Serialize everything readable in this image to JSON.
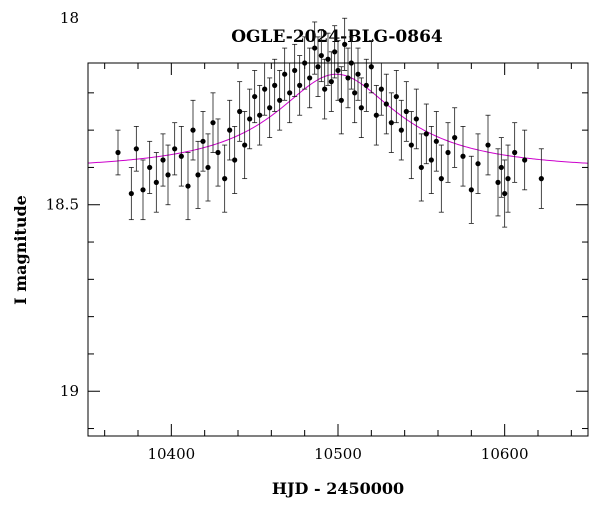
{
  "chart_data": {
    "type": "scatter",
    "title": "OGLE-2024-BLG-0864",
    "xlabel": "HJD - 2450000",
    "ylabel": "I magnitude",
    "xlim": [
      10350,
      10650
    ],
    "ylim": [
      19.12,
      18.12
    ],
    "y_inverted": true,
    "grid": false,
    "legend": "none",
    "x_major_ticks": [
      10400,
      10500,
      10600
    ],
    "x_tick_labels": [
      "10400",
      "10500",
      "10600"
    ],
    "y_major_ticks": [
      18,
      18.5,
      19
    ],
    "y_tick_labels": [
      "18",
      "18.5",
      "19"
    ],
    "colors": {
      "points": "#000000",
      "model": "#cc00cc",
      "frame": "#000000"
    },
    "model": {
      "name": "",
      "t0": 10499,
      "baseline_mag": 18.41,
      "peak_mag": 18.15,
      "width_days": 45
    },
    "series": [
      {
        "name": "",
        "x": [
          10368,
          10376,
          10379,
          10383,
          10387,
          10391,
          10395,
          10398,
          10402,
          10406,
          10410,
          10413,
          10416,
          10419,
          10422,
          10425,
          10428,
          10432,
          10435,
          10438,
          10441,
          10444,
          10447,
          10450,
          10453,
          10456,
          10459,
          10462,
          10465,
          10468,
          10471,
          10474,
          10477,
          10480,
          10483,
          10486,
          10488,
          10490,
          10492,
          10494,
          10496,
          10498,
          10500,
          10502,
          10504,
          10506,
          10508,
          10510,
          10512,
          10514,
          10517,
          10520,
          10523,
          10526,
          10529,
          10532,
          10535,
          10538,
          10541,
          10544,
          10547,
          10550,
          10553,
          10556,
          10559,
          10562,
          10566,
          10570,
          10575,
          10580,
          10584,
          10590,
          10596,
          10598,
          10600,
          10602,
          10606,
          10612,
          10622
        ],
        "y": [
          18.36,
          18.47,
          18.35,
          18.46,
          18.4,
          18.44,
          18.38,
          18.42,
          18.35,
          18.37,
          18.45,
          18.3,
          18.42,
          18.33,
          18.4,
          18.28,
          18.36,
          18.43,
          18.3,
          18.38,
          18.25,
          18.34,
          18.27,
          18.21,
          18.26,
          18.19,
          18.24,
          18.18,
          18.22,
          18.15,
          18.2,
          18.14,
          18.18,
          18.12,
          18.16,
          18.08,
          18.13,
          18.1,
          18.19,
          18.11,
          18.17,
          18.09,
          18.14,
          18.22,
          18.07,
          18.16,
          18.12,
          18.2,
          18.15,
          18.24,
          18.18,
          18.13,
          18.26,
          18.19,
          18.23,
          18.28,
          18.21,
          18.3,
          18.25,
          18.34,
          18.27,
          18.4,
          18.31,
          18.38,
          18.33,
          18.43,
          18.36,
          18.32,
          18.37,
          18.46,
          18.39,
          18.34,
          18.44,
          18.4,
          18.47,
          18.43,
          18.36,
          18.38,
          18.43
        ],
        "err": [
          0.06,
          0.07,
          0.06,
          0.08,
          0.07,
          0.08,
          0.07,
          0.08,
          0.07,
          0.08,
          0.09,
          0.08,
          0.09,
          0.08,
          0.09,
          0.08,
          0.09,
          0.09,
          0.08,
          0.09,
          0.08,
          0.09,
          0.08,
          0.07,
          0.08,
          0.07,
          0.08,
          0.07,
          0.08,
          0.07,
          0.08,
          0.07,
          0.08,
          0.07,
          0.08,
          0.07,
          0.08,
          0.07,
          0.08,
          0.07,
          0.08,
          0.07,
          0.08,
          0.09,
          0.07,
          0.08,
          0.07,
          0.08,
          0.07,
          0.08,
          0.07,
          0.07,
          0.08,
          0.07,
          0.08,
          0.08,
          0.07,
          0.08,
          0.08,
          0.09,
          0.08,
          0.09,
          0.08,
          0.09,
          0.08,
          0.09,
          0.08,
          0.08,
          0.08,
          0.09,
          0.08,
          0.08,
          0.09,
          0.08,
          0.09,
          0.09,
          0.08,
          0.08,
          0.08
        ]
      }
    ]
  }
}
